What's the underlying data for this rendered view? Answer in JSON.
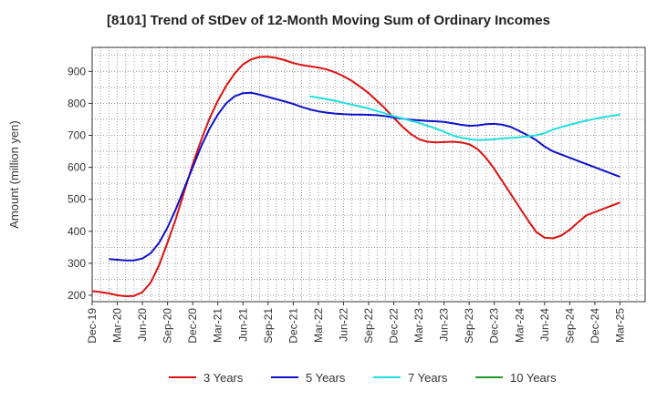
{
  "chart_data": {
    "type": "line",
    "title": "[8101]  Trend of StDev of 12-Month Moving Sum of Ordinary Incomes",
    "xlabel": "",
    "ylabel": "Amount (million yen)",
    "ylim": [
      180,
      975
    ],
    "yticks": [
      200,
      300,
      400,
      500,
      600,
      700,
      800,
      900
    ],
    "xlim": [
      0,
      66
    ],
    "x_tick_labels": [
      "Dec-19",
      "Mar-20",
      "Jun-20",
      "Sep-20",
      "Dec-20",
      "Mar-21",
      "Jun-21",
      "Sep-21",
      "Dec-21",
      "Mar-22",
      "Jun-22",
      "Sep-22",
      "Dec-22",
      "Mar-23",
      "Jun-23",
      "Sep-23",
      "Dec-23",
      "Mar-24",
      "Jun-24",
      "Sep-24",
      "Dec-24",
      "Mar-25"
    ],
    "grid": true,
    "legend_position": "bottom",
    "series": [
      {
        "name": "3 Years",
        "color": "#dd1111",
        "x": [
          0,
          1,
          2,
          3,
          4,
          5,
          6,
          7,
          8,
          9,
          10,
          11,
          12,
          13,
          14,
          15,
          16,
          17,
          18,
          19,
          20,
          21,
          22,
          23,
          24,
          25,
          26,
          27,
          28,
          29,
          30,
          31,
          32,
          33,
          34,
          35,
          36,
          37,
          38,
          39,
          40,
          41,
          42,
          43,
          44,
          45,
          46,
          47,
          48,
          49,
          50,
          51,
          52,
          53,
          54,
          55,
          56,
          57,
          58,
          59,
          60,
          61,
          62,
          63
        ],
        "values": [
          213,
          210,
          206,
          200,
          197,
          198,
          210,
          240,
          295,
          365,
          440,
          525,
          610,
          685,
          752,
          808,
          855,
          893,
          922,
          938,
          945,
          946,
          942,
          935,
          926,
          920,
          916,
          912,
          906,
          897,
          885,
          870,
          852,
          832,
          808,
          783,
          755,
          728,
          705,
          688,
          680,
          678,
          679,
          680,
          678,
          672,
          657,
          630,
          595,
          555,
          515,
          475,
          435,
          398,
          380,
          378,
          387,
          405,
          428,
          450,
          460,
          470,
          480,
          490
        ]
      },
      {
        "name": "5 Years",
        "color": "#1111cc",
        "x": [
          2,
          3,
          4,
          5,
          6,
          7,
          8,
          9,
          10,
          11,
          12,
          13,
          14,
          15,
          16,
          17,
          18,
          19,
          20,
          21,
          22,
          23,
          24,
          25,
          26,
          27,
          28,
          29,
          30,
          31,
          32,
          33,
          34,
          35,
          36,
          37,
          38,
          39,
          40,
          41,
          42,
          43,
          44,
          45,
          46,
          47,
          48,
          49,
          50,
          51,
          52,
          53,
          54,
          55,
          56,
          57,
          58,
          59,
          60,
          61,
          62,
          63
        ],
        "values": [
          313,
          311,
          309,
          309,
          315,
          332,
          365,
          412,
          470,
          535,
          600,
          665,
          720,
          765,
          800,
          822,
          832,
          833,
          827,
          820,
          813,
          806,
          798,
          789,
          781,
          775,
          771,
          768,
          766,
          765,
          765,
          764,
          763,
          760,
          756,
          752,
          749,
          747,
          745,
          744,
          742,
          738,
          733,
          730,
          731,
          735,
          736,
          733,
          726,
          713,
          700,
          685,
          665,
          650,
          640,
          630,
          620,
          610,
          600,
          590,
          580,
          570
        ]
      },
      {
        "name": "7 Years",
        "color": "#22dddd",
        "x": [
          26,
          27,
          28,
          29,
          30,
          31,
          32,
          33,
          34,
          35,
          36,
          37,
          38,
          39,
          40,
          41,
          42,
          43,
          44,
          45,
          46,
          47,
          48,
          49,
          50,
          51,
          52,
          53,
          54,
          55,
          56,
          57,
          58,
          59,
          60,
          61,
          62,
          63
        ],
        "values": [
          822,
          818,
          813,
          808,
          802,
          796,
          790,
          784,
          776,
          768,
          760,
          753,
          746,
          739,
          730,
          721,
          711,
          700,
          693,
          688,
          685,
          686,
          688,
          690,
          692,
          694,
          697,
          700,
          707,
          718,
          726,
          733,
          740,
          746,
          752,
          757,
          761,
          765
        ]
      },
      {
        "name": "10 Years",
        "color": "#229922",
        "x": [],
        "values": []
      }
    ]
  }
}
